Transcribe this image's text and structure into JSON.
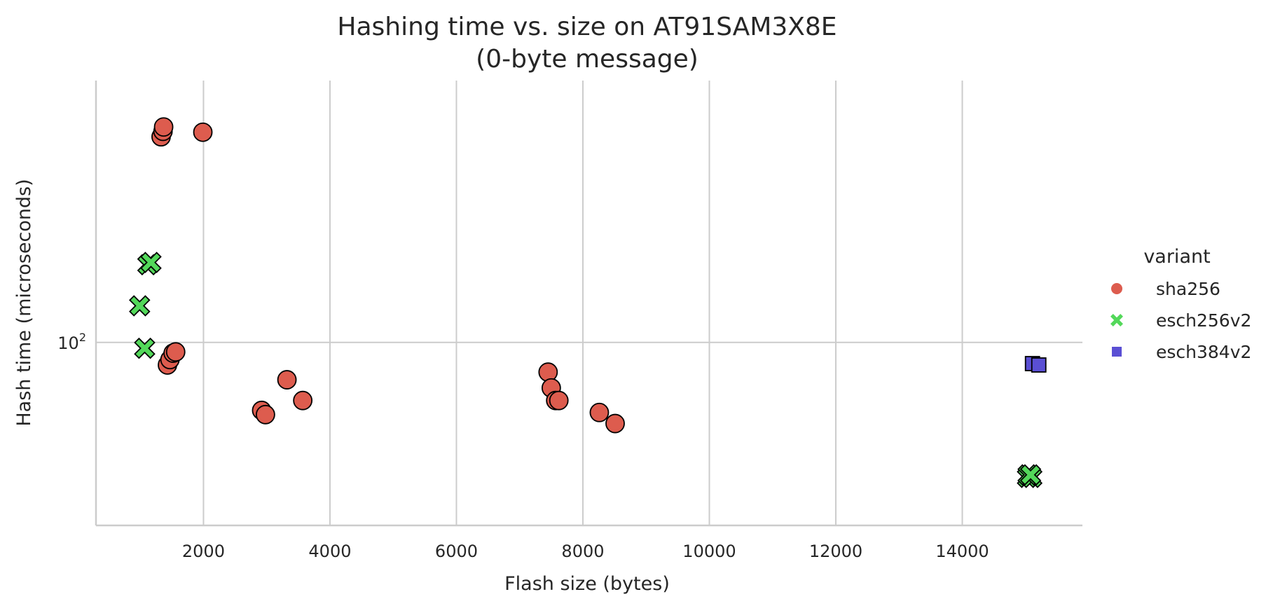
{
  "chart_data": {
    "type": "scatter",
    "title": "Hashing time vs. size on AT91SAM3X8E",
    "subtitle": "(0-byte message)",
    "xlabel": "Flash size (bytes)",
    "ylabel": "Hash time (microseconds)",
    "xlim": [
      300,
      15900
    ],
    "ylim": [
      20,
      1000
    ],
    "y_scale": "log",
    "x_ticks": [
      2000,
      4000,
      6000,
      8000,
      10000,
      12000,
      14000
    ],
    "x_tick_labels": [
      "2000",
      "4000",
      "6000",
      "8000",
      "10000",
      "12000",
      "14000"
    ],
    "y_ticks": [
      100
    ],
    "y_tick_labels": [
      {
        "base": "10",
        "exp": "2"
      }
    ],
    "grid": true,
    "legend": {
      "title": "variant",
      "placement": "right",
      "entries": [
        "sha256",
        "esch256v2",
        "esch384v2"
      ]
    },
    "series": [
      {
        "name": "sha256",
        "marker": "circle",
        "color": "#dd5c4e",
        "x": [
          1330,
          1360,
          1370,
          1990,
          1430,
          1470,
          1520,
          1560,
          2920,
          2980,
          3320,
          3570,
          7450,
          7500,
          7570,
          7620,
          8260,
          8510
        ],
        "y": [
          610,
          640,
          665,
          635,
          82,
          86,
          91,
          92,
          55,
          53,
          72,
          60,
          77,
          67,
          60,
          60,
          54,
          49
        ]
      },
      {
        "name": "esch256v2",
        "marker": "x",
        "color": "#53d85a",
        "x": [
          1120,
          1170,
          990,
          1070,
          15030,
          15100,
          15040,
          15080
        ],
        "y": [
          198,
          202,
          138,
          95,
          30.5,
          30.5,
          31.2,
          31.2
        ]
      },
      {
        "name": "esch384v2",
        "marker": "square",
        "color": "#5a4fd4",
        "x": [
          15110,
          15210
        ],
        "y": [
          83,
          82
        ]
      }
    ]
  }
}
